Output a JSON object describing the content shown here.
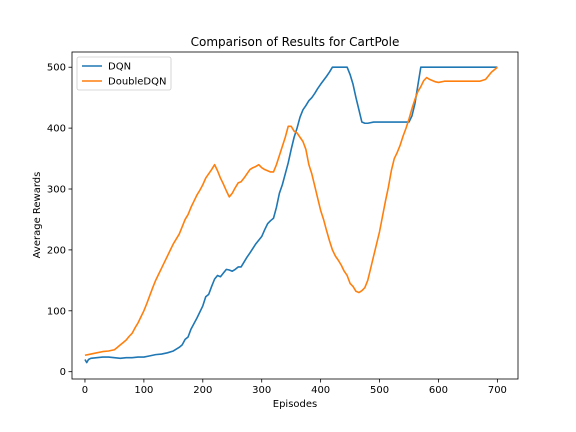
{
  "chart_data": {
    "type": "line",
    "title": "Comparison of Results for CartPole",
    "xlabel": "Episodes",
    "ylabel": "Average Rewards",
    "xlim": [
      -22,
      735
    ],
    "ylim": [
      -12,
      525
    ],
    "xticks": [
      0,
      100,
      200,
      300,
      400,
      500,
      600,
      700
    ],
    "yticks": [
      0,
      100,
      200,
      300,
      400,
      500
    ],
    "grid": false,
    "legend_position": "top-left",
    "series": [
      {
        "name": "DQN",
        "color": "#1f77b4",
        "points": [
          [
            0,
            20
          ],
          [
            3,
            15
          ],
          [
            6,
            20
          ],
          [
            10,
            22
          ],
          [
            20,
            23
          ],
          [
            30,
            24
          ],
          [
            40,
            24
          ],
          [
            50,
            23
          ],
          [
            60,
            22
          ],
          [
            70,
            23
          ],
          [
            80,
            23
          ],
          [
            90,
            24
          ],
          [
            100,
            24
          ],
          [
            110,
            26
          ],
          [
            120,
            28
          ],
          [
            130,
            29
          ],
          [
            140,
            31
          ],
          [
            150,
            34
          ],
          [
            160,
            40
          ],
          [
            165,
            44
          ],
          [
            170,
            53
          ],
          [
            175,
            57
          ],
          [
            180,
            70
          ],
          [
            190,
            88
          ],
          [
            200,
            108
          ],
          [
            205,
            123
          ],
          [
            210,
            127
          ],
          [
            215,
            140
          ],
          [
            220,
            152
          ],
          [
            225,
            158
          ],
          [
            230,
            156
          ],
          [
            235,
            162
          ],
          [
            240,
            168
          ],
          [
            245,
            167
          ],
          [
            250,
            165
          ],
          [
            255,
            168
          ],
          [
            260,
            172
          ],
          [
            265,
            172
          ],
          [
            270,
            180
          ],
          [
            275,
            188
          ],
          [
            280,
            195
          ],
          [
            290,
            210
          ],
          [
            300,
            222
          ],
          [
            305,
            233
          ],
          [
            310,
            243
          ],
          [
            315,
            248
          ],
          [
            320,
            252
          ],
          [
            325,
            270
          ],
          [
            330,
            293
          ],
          [
            335,
            307
          ],
          [
            340,
            325
          ],
          [
            345,
            343
          ],
          [
            350,
            365
          ],
          [
            355,
            385
          ],
          [
            360,
            400
          ],
          [
            365,
            418
          ],
          [
            370,
            430
          ],
          [
            375,
            437
          ],
          [
            380,
            445
          ],
          [
            385,
            450
          ],
          [
            390,
            457
          ],
          [
            395,
            465
          ],
          [
            400,
            472
          ],
          [
            410,
            485
          ],
          [
            415,
            492
          ],
          [
            420,
            500
          ],
          [
            425,
            500
          ],
          [
            430,
            500
          ],
          [
            440,
            500
          ],
          [
            445,
            500
          ],
          [
            450,
            488
          ],
          [
            455,
            472
          ],
          [
            460,
            450
          ],
          [
            465,
            430
          ],
          [
            470,
            410
          ],
          [
            475,
            408
          ],
          [
            480,
            408
          ],
          [
            490,
            410
          ],
          [
            500,
            410
          ],
          [
            510,
            410
          ],
          [
            520,
            410
          ],
          [
            530,
            410
          ],
          [
            540,
            410
          ],
          [
            550,
            410
          ],
          [
            555,
            420
          ],
          [
            560,
            440
          ],
          [
            565,
            470
          ],
          [
            570,
            500
          ],
          [
            580,
            500
          ],
          [
            600,
            500
          ],
          [
            620,
            500
          ],
          [
            640,
            500
          ],
          [
            660,
            500
          ],
          [
            680,
            500
          ],
          [
            700,
            500
          ]
        ]
      },
      {
        "name": "DoubleDQN",
        "color": "#ff7f0e",
        "points": [
          [
            0,
            27
          ],
          [
            10,
            29
          ],
          [
            20,
            31
          ],
          [
            30,
            33
          ],
          [
            40,
            34
          ],
          [
            50,
            36
          ],
          [
            55,
            40
          ],
          [
            60,
            44
          ],
          [
            65,
            48
          ],
          [
            70,
            52
          ],
          [
            75,
            58
          ],
          [
            80,
            63
          ],
          [
            85,
            72
          ],
          [
            90,
            80
          ],
          [
            95,
            90
          ],
          [
            100,
            100
          ],
          [
            105,
            112
          ],
          [
            110,
            125
          ],
          [
            115,
            138
          ],
          [
            120,
            150
          ],
          [
            125,
            160
          ],
          [
            130,
            170
          ],
          [
            135,
            180
          ],
          [
            140,
            190
          ],
          [
            145,
            200
          ],
          [
            150,
            210
          ],
          [
            155,
            218
          ],
          [
            160,
            226
          ],
          [
            165,
            238
          ],
          [
            170,
            250
          ],
          [
            175,
            258
          ],
          [
            180,
            270
          ],
          [
            185,
            280
          ],
          [
            190,
            290
          ],
          [
            195,
            298
          ],
          [
            200,
            307
          ],
          [
            205,
            318
          ],
          [
            210,
            325
          ],
          [
            215,
            332
          ],
          [
            220,
            340
          ],
          [
            225,
            330
          ],
          [
            230,
            318
          ],
          [
            235,
            308
          ],
          [
            240,
            297
          ],
          [
            245,
            287
          ],
          [
            250,
            293
          ],
          [
            255,
            302
          ],
          [
            260,
            310
          ],
          [
            265,
            312
          ],
          [
            270,
            318
          ],
          [
            275,
            325
          ],
          [
            280,
            332
          ],
          [
            285,
            335
          ],
          [
            290,
            337
          ],
          [
            295,
            340
          ],
          [
            300,
            335
          ],
          [
            305,
            332
          ],
          [
            310,
            330
          ],
          [
            315,
            328
          ],
          [
            320,
            328
          ],
          [
            325,
            340
          ],
          [
            330,
            355
          ],
          [
            335,
            370
          ],
          [
            340,
            385
          ],
          [
            345,
            403
          ],
          [
            350,
            403
          ],
          [
            355,
            395
          ],
          [
            360,
            392
          ],
          [
            365,
            385
          ],
          [
            370,
            378
          ],
          [
            375,
            365
          ],
          [
            380,
            340
          ],
          [
            385,
            325
          ],
          [
            390,
            305
          ],
          [
            395,
            285
          ],
          [
            400,
            265
          ],
          [
            405,
            250
          ],
          [
            410,
            232
          ],
          [
            415,
            215
          ],
          [
            420,
            200
          ],
          [
            425,
            190
          ],
          [
            430,
            183
          ],
          [
            435,
            175
          ],
          [
            440,
            165
          ],
          [
            445,
            158
          ],
          [
            450,
            145
          ],
          [
            455,
            140
          ],
          [
            460,
            132
          ],
          [
            465,
            130
          ],
          [
            470,
            133
          ],
          [
            475,
            138
          ],
          [
            480,
            150
          ],
          [
            485,
            170
          ],
          [
            490,
            190
          ],
          [
            495,
            210
          ],
          [
            500,
            230
          ],
          [
            505,
            255
          ],
          [
            510,
            280
          ],
          [
            515,
            303
          ],
          [
            520,
            330
          ],
          [
            525,
            350
          ],
          [
            530,
            360
          ],
          [
            535,
            372
          ],
          [
            540,
            387
          ],
          [
            545,
            400
          ],
          [
            550,
            415
          ],
          [
            555,
            432
          ],
          [
            560,
            447
          ],
          [
            565,
            460
          ],
          [
            570,
            468
          ],
          [
            575,
            478
          ],
          [
            580,
            483
          ],
          [
            585,
            480
          ],
          [
            590,
            478
          ],
          [
            595,
            476
          ],
          [
            600,
            475
          ],
          [
            610,
            477
          ],
          [
            620,
            477
          ],
          [
            640,
            477
          ],
          [
            660,
            477
          ],
          [
            670,
            477
          ],
          [
            680,
            480
          ],
          [
            690,
            492
          ],
          [
            700,
            500
          ]
        ]
      }
    ]
  }
}
